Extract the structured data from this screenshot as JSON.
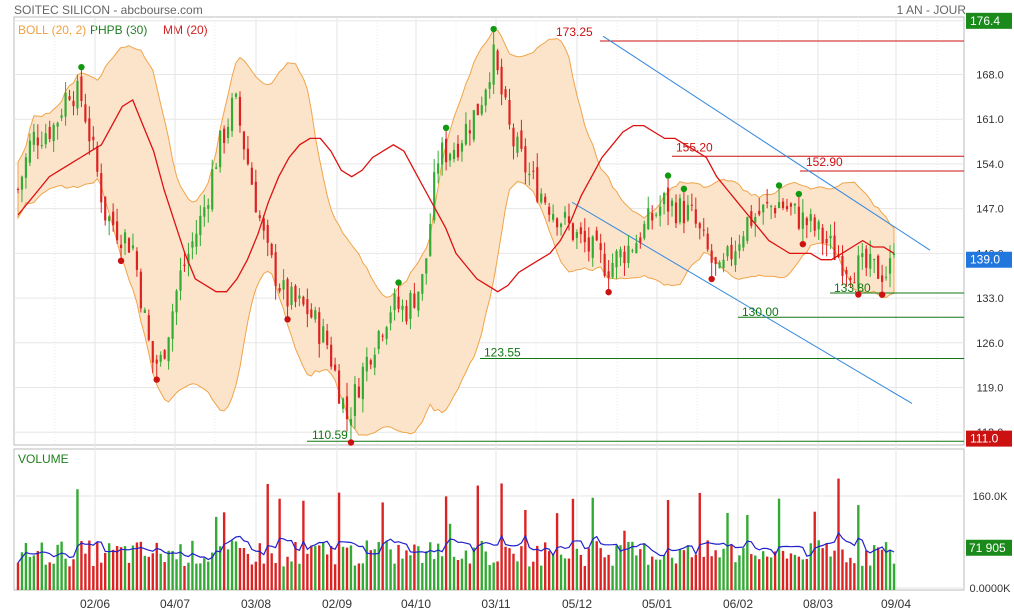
{
  "header": {
    "title": "SOITEC SILICON - abcbourse.com",
    "period": "1 AN - JOUR"
  },
  "legend": [
    {
      "label": "BOLL (20, 2)",
      "color": "#f0a040"
    },
    {
      "label": "PHPB (30)",
      "color": "#208020"
    },
    {
      "label": "MM (20)",
      "color": "#d02020"
    }
  ],
  "colors": {
    "up": "#33aa33",
    "down": "#dd2222",
    "boll_fill": "#fbe3c8",
    "boll_line": "#f0a040",
    "ma": "#dd1111",
    "trend": "#3388dd",
    "vol_avg": "#2222cc",
    "marker_high": "#119911",
    "marker_low": "#cc1111"
  },
  "chart_data": [
    {
      "type": "line",
      "title": "SOITEC SILICON",
      "ylim": [
        110.0,
        177.0
      ],
      "y_ticks": [
        "112.0",
        "119.0",
        "126.0",
        "133.0",
        "140.0",
        "147.0",
        "154.0",
        "161.0",
        "168.0",
        "176.4"
      ],
      "x_ticks": [
        "02/06",
        "04/07",
        "03/08",
        "02/09",
        "04/10",
        "03/11",
        "05/12",
        "05/01",
        "06/02",
        "08/03",
        "09/04"
      ],
      "current_price": "139.0",
      "low_tag": "111.0",
      "series": [
        {
          "name": "MM (20)",
          "values": [
            146,
            148,
            150,
            152,
            153,
            154,
            155,
            156,
            157,
            160,
            163,
            164,
            160,
            156,
            150,
            145,
            140,
            136,
            135,
            134,
            134,
            136,
            139,
            143,
            148,
            152,
            155,
            157,
            158,
            158,
            156,
            153,
            152,
            153,
            155,
            156,
            157,
            156,
            153,
            150,
            147,
            144,
            140,
            138,
            136,
            135,
            134,
            135,
            137,
            138,
            139,
            140,
            142,
            145,
            149,
            152,
            155,
            157,
            159,
            160,
            160,
            159,
            158,
            158,
            157,
            156,
            155,
            152,
            150,
            148,
            146,
            144,
            142,
            141,
            140,
            140,
            140,
            139,
            139,
            140,
            141,
            142,
            141,
            141,
            140
          ]
        }
      ],
      "annotations": [
        {
          "label": "173.25",
          "value": 173.25
        },
        {
          "label": "155.20",
          "value": 155.2
        },
        {
          "label": "152.90",
          "value": 152.9
        },
        {
          "label": "133.80",
          "value": 133.8
        },
        {
          "label": "130.00",
          "value": 130.0
        },
        {
          "label": "123.55",
          "value": 123.55
        },
        {
          "label": "110.59",
          "value": 110.59
        }
      ],
      "resistance_levels": [
        173.25,
        155.2,
        152.9
      ],
      "support_levels": [
        133.8,
        130.0,
        123.55,
        110.59
      ]
    },
    {
      "type": "bar",
      "title": "VOLUME",
      "ylim": [
        0,
        240000
      ],
      "y_ticks": [
        "160.0K",
        "0.0000K"
      ],
      "current_value": "71 905"
    }
  ]
}
